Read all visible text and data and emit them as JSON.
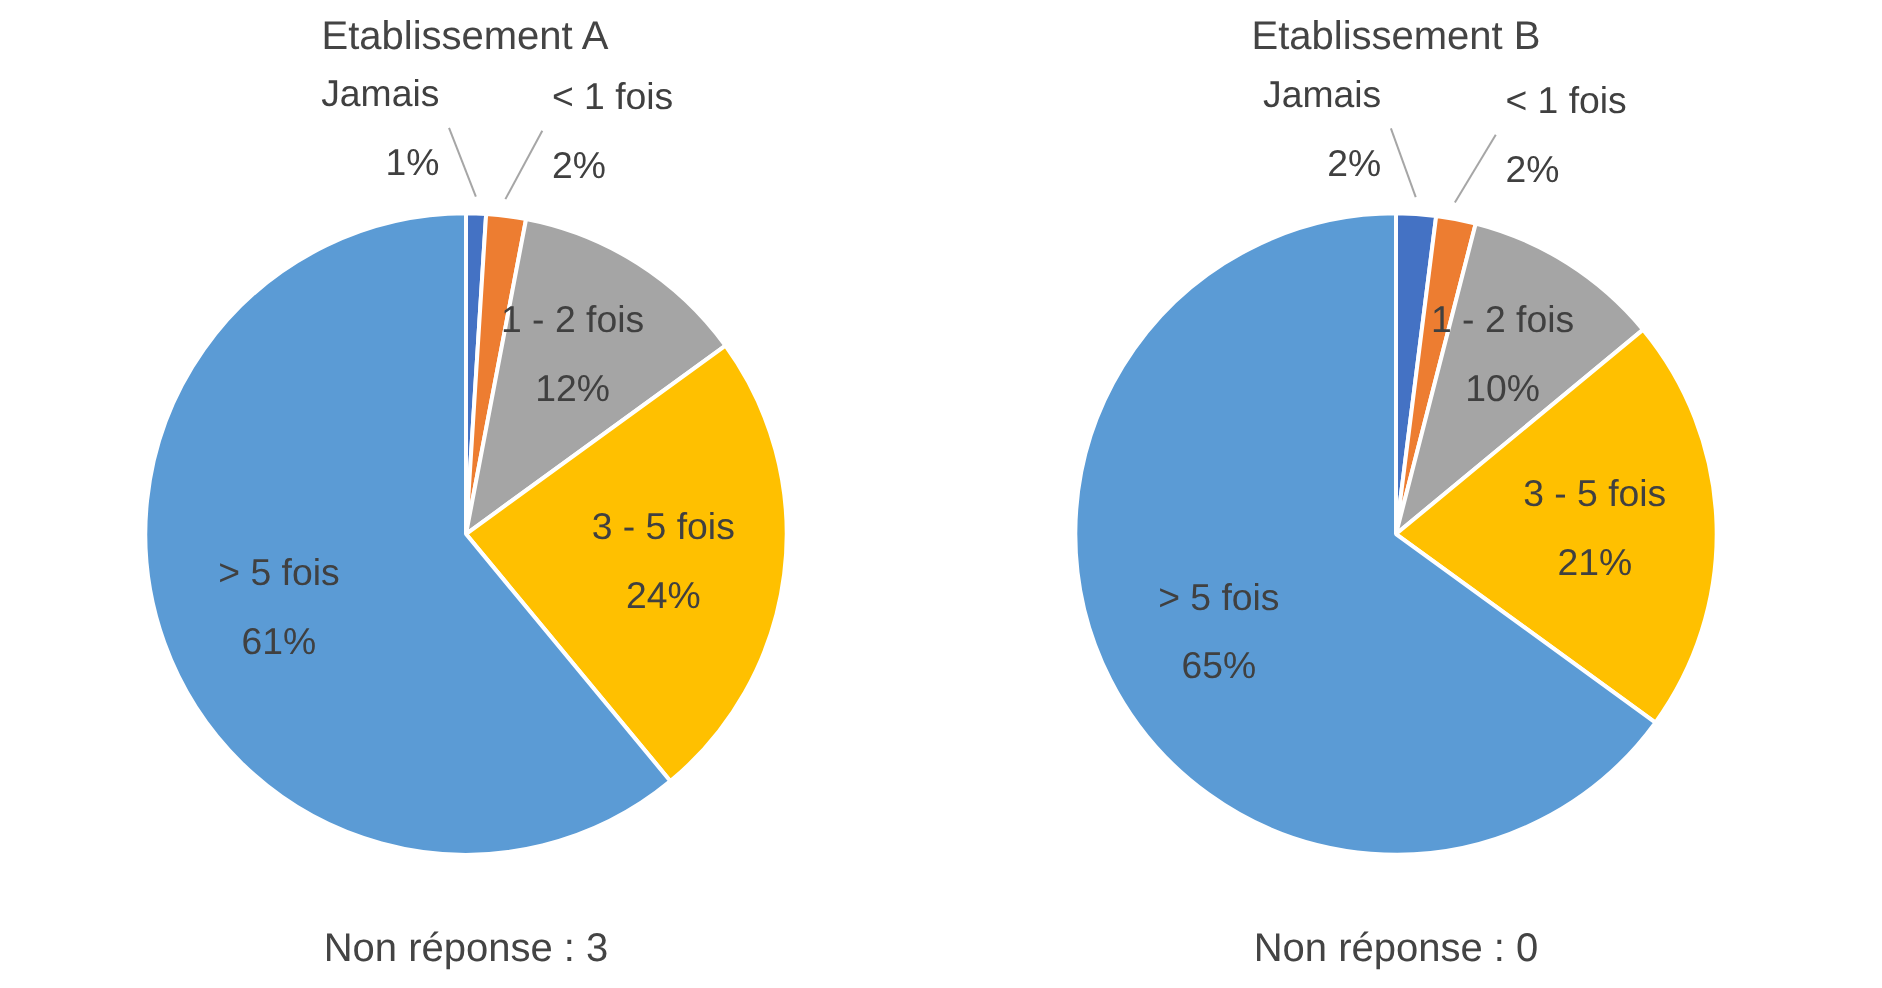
{
  "chart_data": [
    {
      "type": "pie",
      "title": "Etablissement A",
      "categories": [
        "Jamais",
        "< 1 fois",
        "1 - 2 fois",
        "3 - 5 fois",
        "> 5 fois"
      ],
      "values": [
        1,
        2,
        12,
        24,
        61
      ],
      "value_labels": [
        "1%",
        "2%",
        "12%",
        "24%",
        "61%"
      ],
      "colors": [
        "#4472c4",
        "#ed7d31",
        "#a5a5a5",
        "#ffc000",
        "#5b9bd5"
      ],
      "annotations": [
        "Non réponse : 3"
      ]
    },
    {
      "type": "pie",
      "title": "Etablissement B",
      "categories": [
        "Jamais",
        "< 1 fois",
        "1 - 2 fois",
        "3 - 5 fois",
        "> 5 fois"
      ],
      "values": [
        2,
        2,
        10,
        21,
        65
      ],
      "value_labels": [
        "2%",
        "2%",
        "10%",
        "21%",
        "65%"
      ],
      "colors": [
        "#4472c4",
        "#ed7d31",
        "#a5a5a5",
        "#ffc000",
        "#5b9bd5"
      ],
      "annotations": [
        "Non réponse : 0"
      ]
    }
  ]
}
